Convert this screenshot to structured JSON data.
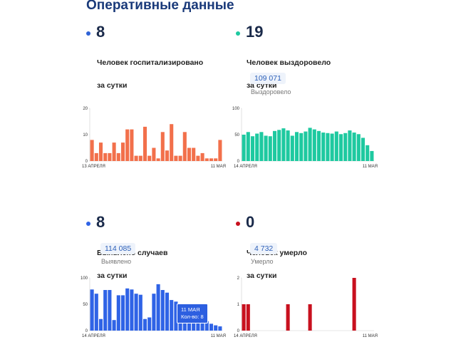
{
  "page_title": "Оперативные данные",
  "cards": [
    {
      "key": "hospitalized",
      "number": "8",
      "desc_line1": "Человек госпитализировано",
      "desc_line2": "за сутки",
      "total": "",
      "total_label": "",
      "color": "#f2704b",
      "dot_color": "#2f63d6"
    },
    {
      "key": "recovered",
      "number": "19",
      "desc_line1": "Человек выздоровело",
      "desc_line2": "за сутки",
      "total": "109 071",
      "total_label": "Выздоровело",
      "color": "#1ec9a0",
      "dot_color": "#1ec9a0"
    },
    {
      "key": "cases",
      "number": "8",
      "desc_line1": "Выявлено случаев",
      "desc_line2": "за сутки",
      "total": "114 085",
      "total_label": "Выявлено",
      "color": "#2f63e6",
      "dot_color": "#2f63e6"
    },
    {
      "key": "deaths",
      "number": "0",
      "desc_line1": "Человек умерло",
      "desc_line2": "за сутки",
      "total": "4 732",
      "total_label": "Умерло",
      "color": "#c8101e",
      "dot_color": "#c8101e"
    }
  ],
  "chart_data": [
    {
      "type": "bar",
      "series_of": "hospitalized",
      "x_start_label": "13 АПРЕЛЯ",
      "x_end_label": "11 МАЯ",
      "yticks": [
        0,
        10,
        20
      ],
      "ylim": [
        0,
        20
      ],
      "values": [
        8,
        3,
        7,
        3,
        3,
        7,
        3,
        7,
        12,
        12,
        2,
        2,
        13,
        2,
        5,
        1,
        11,
        4,
        14,
        2,
        2,
        11,
        5,
        5,
        2,
        3,
        1,
        1,
        1,
        8
      ]
    },
    {
      "type": "bar",
      "series_of": "recovered",
      "x_start_label": "14 АПРЕЛЯ",
      "x_end_label": "11 МАЯ",
      "yticks": [
        0,
        50,
        100
      ],
      "ylim": [
        0,
        100
      ],
      "values": [
        50,
        55,
        47,
        52,
        55,
        48,
        47,
        57,
        59,
        62,
        58,
        48,
        55,
        53,
        56,
        63,
        60,
        57,
        54,
        53,
        52,
        56,
        51,
        53,
        58,
        54,
        51,
        44,
        30,
        19
      ]
    },
    {
      "type": "bar",
      "series_of": "cases",
      "x_start_label": "14 АПРЕЛЯ",
      "x_end_label": "11 МАЯ",
      "yticks": [
        0,
        50,
        100
      ],
      "ylim": [
        0,
        100
      ],
      "values": [
        78,
        70,
        22,
        77,
        77,
        20,
        67,
        67,
        80,
        78,
        70,
        68,
        22,
        25,
        70,
        88,
        77,
        72,
        58,
        55,
        23,
        33,
        30,
        28,
        23,
        18,
        18,
        13,
        10,
        8
      ],
      "tooltip": {
        "title": "11 МАЯ",
        "text": "Кол-во: 8"
      }
    },
    {
      "type": "bar",
      "series_of": "deaths",
      "x_start_label": "14 АПРЕЛЯ",
      "x_end_label": "11 МАЯ",
      "yticks": [
        0,
        1,
        2
      ],
      "ylim": [
        0,
        2
      ],
      "values": [
        1,
        1,
        0,
        0,
        0,
        0,
        0,
        0,
        0,
        0,
        1,
        0,
        0,
        0,
        0,
        1,
        0,
        0,
        0,
        0,
        0,
        0,
        0,
        0,
        0,
        2,
        0,
        0,
        0,
        0
      ]
    }
  ]
}
